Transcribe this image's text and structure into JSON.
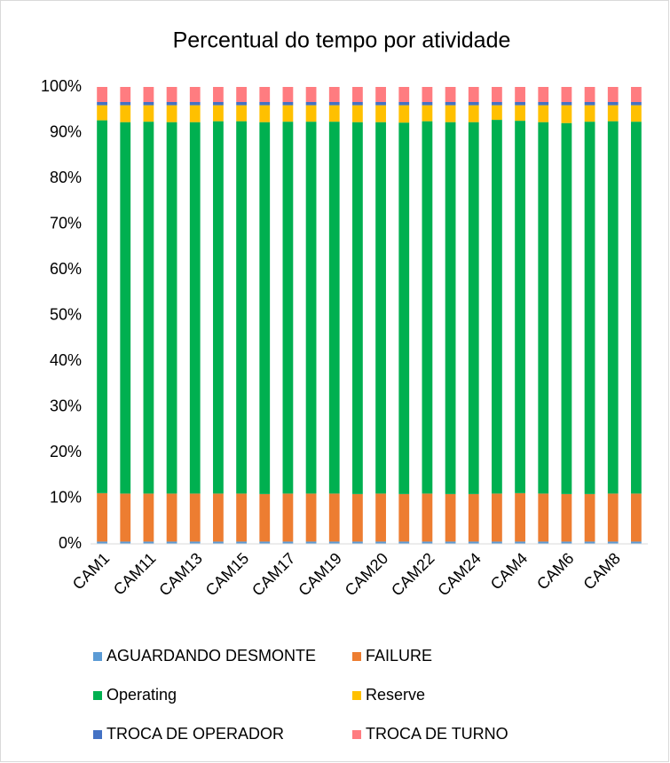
{
  "chart_data": {
    "type": "stacked_bar",
    "title": "Percentual do tempo por atividade",
    "categories": [
      "CAM1",
      null,
      "CAM11",
      null,
      "CAM13",
      null,
      "CAM15",
      null,
      "CAM17",
      null,
      "CAM19",
      null,
      "CAM20",
      null,
      "CAM22",
      null,
      "CAM24",
      null,
      "CAM4",
      null,
      "CAM6",
      null,
      "CAM8",
      null
    ],
    "series": [
      {
        "name": "AGUARDANDO DESMONTE",
        "color": "#5b9bd5",
        "values": [
          0.5,
          0.5,
          0.5,
          0.5,
          0.5,
          0.5,
          0.5,
          0.5,
          0.5,
          0.5,
          0.5,
          0.5,
          0.5,
          0.5,
          0.5,
          0.5,
          0.5,
          0.5,
          0.5,
          0.5,
          0.5,
          0.5,
          0.5,
          0.5
        ]
      },
      {
        "name": "FAILURE",
        "color": "#ed7d31",
        "values": [
          10.6,
          10.5,
          10.5,
          10.5,
          10.5,
          10.5,
          10.5,
          10.4,
          10.5,
          10.5,
          10.5,
          10.4,
          10.5,
          10.4,
          10.5,
          10.4,
          10.4,
          10.5,
          10.6,
          10.5,
          10.4,
          10.4,
          10.5,
          10.5
        ]
      },
      {
        "name": "Operating",
        "color": "#00b050",
        "values": [
          81.6,
          81.3,
          81.4,
          81.3,
          81.3,
          81.5,
          81.5,
          81.4,
          81.4,
          81.4,
          81.4,
          81.4,
          81.3,
          81.3,
          81.5,
          81.4,
          81.4,
          81.8,
          81.5,
          81.3,
          81.2,
          81.5,
          81.5,
          81.4
        ]
      },
      {
        "name": "Reserve",
        "color": "#ffc000",
        "values": [
          3.3,
          3.7,
          3.6,
          3.7,
          3.7,
          3.5,
          3.5,
          3.7,
          3.6,
          3.6,
          3.6,
          3.7,
          3.7,
          3.8,
          3.5,
          3.7,
          3.7,
          3.2,
          3.4,
          3.7,
          3.9,
          3.6,
          3.5,
          3.6
        ]
      },
      {
        "name": "TROCA DE OPERADOR",
        "color": "#4472c4",
        "values": [
          0.7,
          0.7,
          0.7,
          0.7,
          0.7,
          0.7,
          0.7,
          0.7,
          0.7,
          0.7,
          0.7,
          0.7,
          0.7,
          0.7,
          0.7,
          0.7,
          0.7,
          0.7,
          0.7,
          0.7,
          0.7,
          0.7,
          0.7,
          0.7
        ]
      },
      {
        "name": "TROCA DE TURNO",
        "color": "#ff7c80",
        "values": [
          3.3,
          3.3,
          3.3,
          3.3,
          3.3,
          3.3,
          3.3,
          3.3,
          3.3,
          3.3,
          3.3,
          3.3,
          3.3,
          3.3,
          3.3,
          3.3,
          3.3,
          3.3,
          3.3,
          3.3,
          3.3,
          3.3,
          3.3,
          3.3
        ]
      }
    ],
    "ylim": [
      0,
      100
    ],
    "yticks": [
      {
        "value": 0,
        "label": "0%"
      },
      {
        "value": 10,
        "label": "10%"
      },
      {
        "value": 20,
        "label": "20%"
      },
      {
        "value": 30,
        "label": "30%"
      },
      {
        "value": 40,
        "label": "40%"
      },
      {
        "value": 50,
        "label": "50%"
      },
      {
        "value": 60,
        "label": "60%"
      },
      {
        "value": 70,
        "label": "70%"
      },
      {
        "value": 80,
        "label": "80%"
      },
      {
        "value": 90,
        "label": "90%"
      },
      {
        "value": 100,
        "label": "100%"
      }
    ],
    "grid": false,
    "legend": "bottom"
  }
}
